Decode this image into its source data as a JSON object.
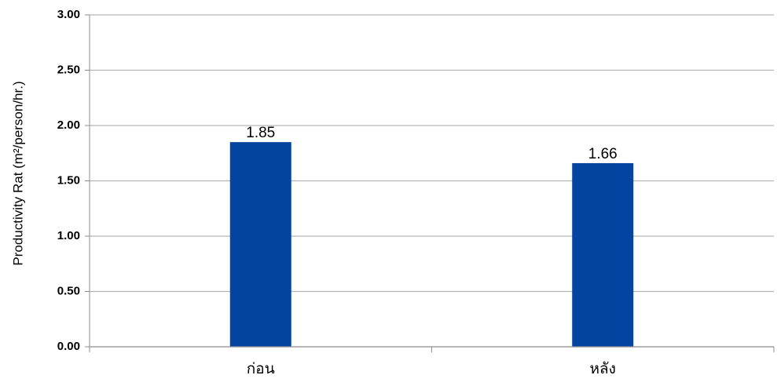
{
  "chart_data": {
    "type": "bar",
    "categories": [
      "ก่อน",
      "หลัง"
    ],
    "values": [
      1.85,
      1.66
    ],
    "data_labels": [
      "1.85",
      "1.66"
    ],
    "ylabel": "Productivity Rat (m²/person/hr.)",
    "xlabel": "",
    "ylim": [
      0,
      3
    ],
    "y_ticks": [
      "0.00",
      "0.50",
      "1.00",
      "1.50",
      "2.00",
      "2.50",
      "3.00"
    ],
    "grid": true,
    "legend": "none",
    "colors": {
      "bar": "#0244A0",
      "grid": "#B3B3B3",
      "axis": "#8C8C8C"
    }
  }
}
